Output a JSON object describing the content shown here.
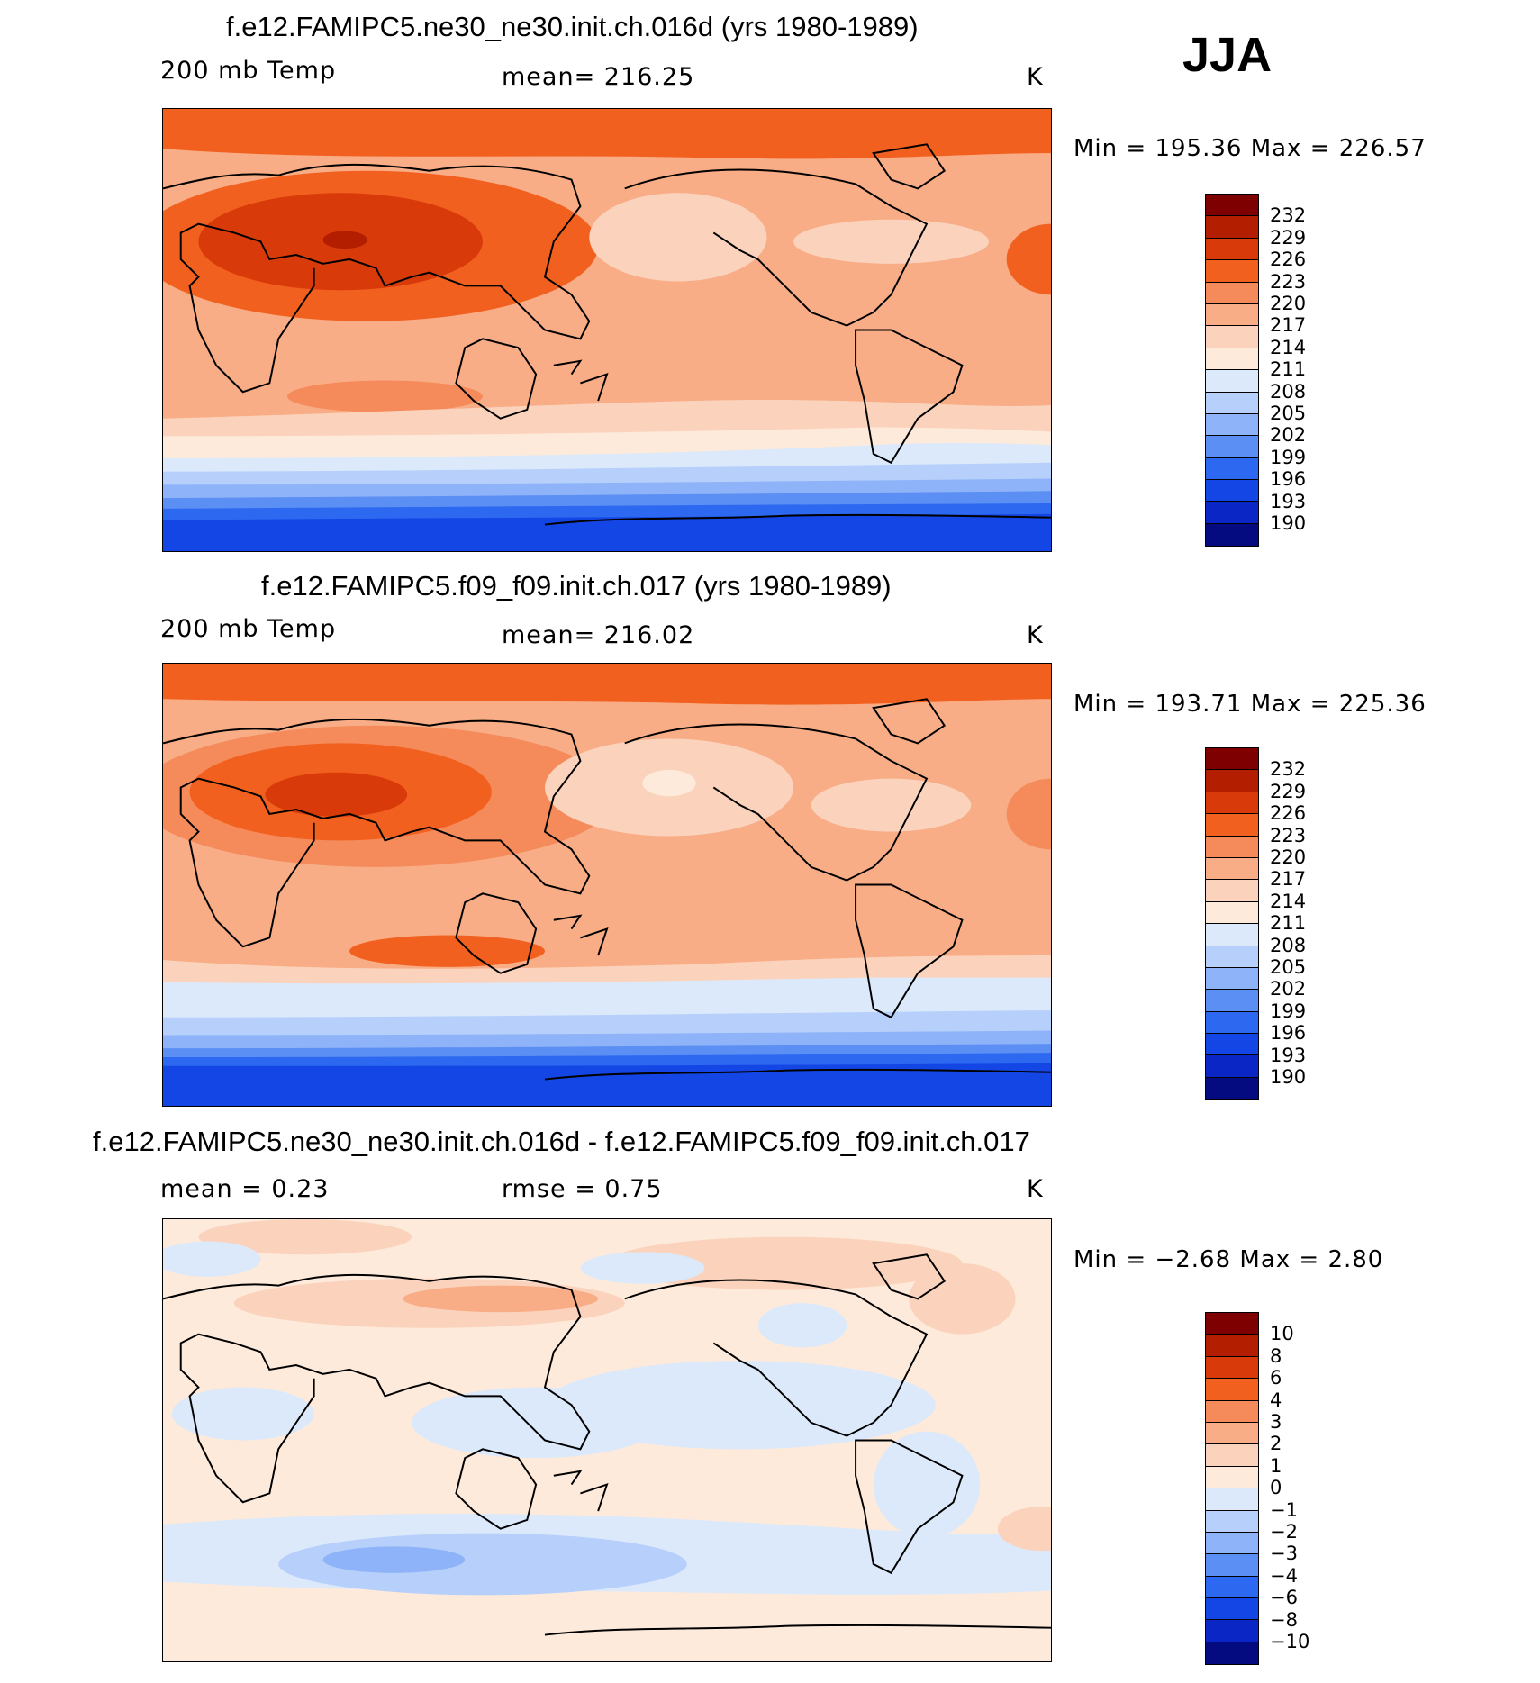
{
  "season": "JJA",
  "panels": [
    {
      "title": "f.e12.FAMIPC5.ne30_ne30.init.ch.016d (yrs 1980-1989)",
      "left_label": "200 mb Temp",
      "center_label": "mean= 216.25",
      "units": "K",
      "minmax": "Min  =  195.36  Max  =  226.57"
    },
    {
      "title": "f.e12.FAMIPC5.f09_f09.init.ch.017 (yrs 1980-1989)",
      "left_label": "200 mb Temp",
      "center_label": "mean= 216.02",
      "units": "K",
      "minmax": "Min  =  193.71  Max  =  225.36"
    },
    {
      "title": "f.e12.FAMIPC5.ne30_ne30.init.ch.016d - f.e12.FAMIPC5.f09_f09.init.ch.017",
      "left_label": "mean =     0.23",
      "center_label": "rmse =     0.75",
      "units": "K",
      "minmax": "Min  =    −2.68  Max  =     2.80"
    }
  ],
  "colorbar_abs": {
    "labels": [
      "232",
      "229",
      "226",
      "223",
      "220",
      "217",
      "214",
      "211",
      "208",
      "205",
      "202",
      "199",
      "196",
      "193",
      "190"
    ],
    "colors": [
      "#7f0000",
      "#b31d00",
      "#d93a0a",
      "#f2601f",
      "#f58a5a",
      "#f8ad86",
      "#fbd3bd",
      "#fdeadb",
      "#dbe9fb",
      "#b6d0fb",
      "#8fb3f8",
      "#5b8ff4",
      "#2d68f0",
      "#1446e6",
      "#0a26c4",
      "#040a80"
    ]
  },
  "colorbar_diff": {
    "labels": [
      "10",
      "8",
      "6",
      "4",
      "3",
      "2",
      "1",
      "0",
      "−1",
      "−2",
      "−3",
      "−4",
      "−6",
      "−8",
      "−10"
    ],
    "colors": [
      "#7f0000",
      "#b31d00",
      "#d93a0a",
      "#f2601f",
      "#f58a5a",
      "#f8ad86",
      "#fbd3bd",
      "#fdeadb",
      "#dbe9fb",
      "#b6d0fb",
      "#8fb3f8",
      "#5b8ff4",
      "#2d68f0",
      "#1446e6",
      "#0a26c4",
      "#040a80"
    ]
  },
  "map_colors": {
    "land_outline": "#000000"
  }
}
